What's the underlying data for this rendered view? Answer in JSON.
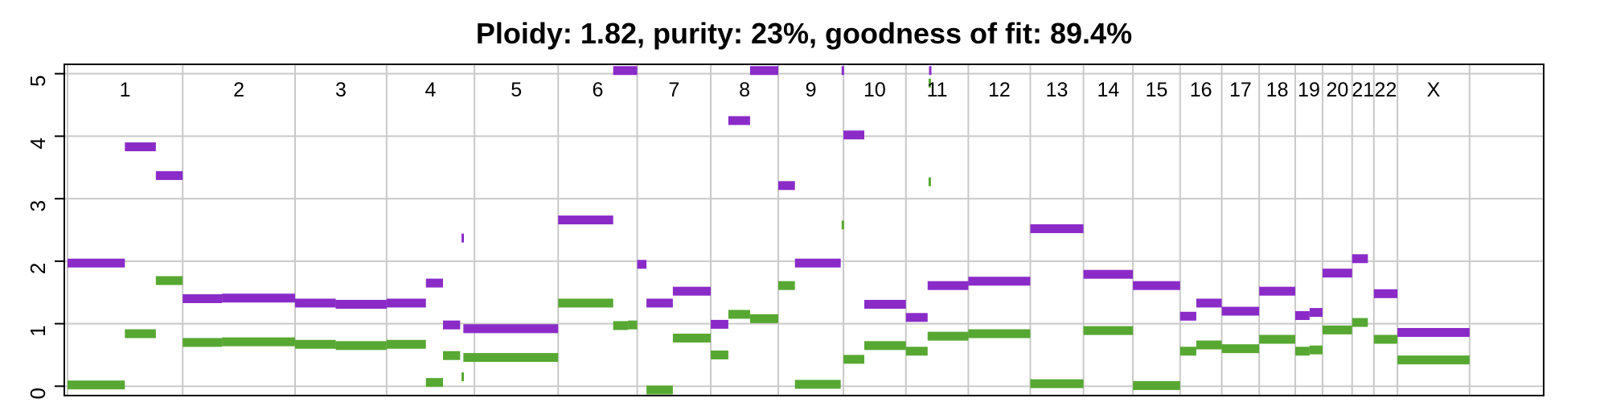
{
  "chart_data": {
    "type": "scatter",
    "title": "Ploidy: 1.82, purity: 23%, goodness of fit: 89.4%",
    "xlabel": "",
    "ylabel": "",
    "ylim": [
      -0.15,
      5.15
    ],
    "xlim": [
      0,
      3187
    ],
    "grid": true,
    "y_ticks": [
      0,
      1,
      2,
      3,
      4,
      5
    ],
    "chromosome_boundaries": [
      0,
      249,
      492,
      690,
      880,
      1061,
      1232,
      1391,
      1537,
      1678,
      1813,
      1948,
      2082,
      2197,
      2304,
      2406,
      2496,
      2577,
      2655,
      2714,
      2778,
      2825,
      2876,
      3032
    ],
    "chromosome_labels": [
      "1",
      "2",
      "3",
      "4",
      "5",
      "6",
      "7",
      "8",
      "9",
      "10",
      "11",
      "12",
      "13",
      "14",
      "15",
      "16",
      "17",
      "18",
      "19",
      "20",
      "21",
      "22",
      "X"
    ],
    "colors": {
      "major": "#8A2BC8",
      "minor": "#57A832",
      "overflow": "#4B1A72",
      "grid": "#c9c9c9",
      "axis": "#000000"
    },
    "series": [
      {
        "role": "major",
        "segments": [
          [
            0,
            124,
            1.97
          ],
          [
            124,
            191,
            3.83
          ],
          [
            191,
            249,
            3.37
          ],
          [
            249,
            334,
            1.4
          ],
          [
            334,
            492,
            1.41
          ],
          [
            492,
            580,
            1.33
          ],
          [
            580,
            690,
            1.31
          ],
          [
            690,
            775,
            1.33
          ],
          [
            775,
            812,
            1.65
          ],
          [
            812,
            849,
            0.98
          ],
          [
            852,
            856,
            2.37
          ],
          [
            856,
            1061,
            0.92
          ],
          [
            1061,
            1180,
            2.66
          ],
          [
            1180,
            1232,
            5.05
          ],
          [
            1232,
            1252,
            1.95
          ],
          [
            1252,
            1309,
            1.33
          ],
          [
            1309,
            1391,
            1.52
          ],
          [
            1391,
            1429,
            0.99
          ],
          [
            1429,
            1476,
            4.25
          ],
          [
            1476,
            1537,
            5.05
          ],
          [
            1537,
            1573,
            3.21
          ],
          [
            1573,
            1672,
            1.97
          ],
          [
            1674,
            1678,
            5.05
          ],
          [
            1678,
            1723,
            4.02
          ],
          [
            1723,
            1813,
            1.31
          ],
          [
            1813,
            1860,
            1.1
          ],
          [
            1863,
            1867,
            5.05
          ],
          [
            1860,
            1948,
            1.61
          ],
          [
            1948,
            2082,
            1.68
          ],
          [
            2082,
            2197,
            2.52
          ],
          [
            2197,
            2304,
            1.79
          ],
          [
            2304,
            2406,
            1.61
          ],
          [
            2406,
            2441,
            1.12
          ],
          [
            2441,
            2496,
            1.33
          ],
          [
            2496,
            2577,
            1.2
          ],
          [
            2577,
            2655,
            1.52
          ],
          [
            2655,
            2686,
            1.13
          ],
          [
            2686,
            2714,
            1.18
          ],
          [
            2714,
            2778,
            1.81
          ],
          [
            2778,
            2812,
            2.04
          ],
          [
            2825,
            2876,
            1.48
          ],
          [
            2876,
            3032,
            0.86
          ]
        ]
      },
      {
        "role": "minor",
        "segments": [
          [
            0,
            124,
            0.02
          ],
          [
            124,
            191,
            0.84
          ],
          [
            191,
            249,
            1.69
          ],
          [
            249,
            334,
            0.7
          ],
          [
            334,
            492,
            0.71
          ],
          [
            492,
            580,
            0.67
          ],
          [
            580,
            690,
            0.65
          ],
          [
            690,
            775,
            0.67
          ],
          [
            775,
            812,
            0.06
          ],
          [
            812,
            849,
            0.49
          ],
          [
            852,
            856,
            0.15
          ],
          [
            856,
            1061,
            0.46
          ],
          [
            1061,
            1180,
            1.33
          ],
          [
            1180,
            1212,
            0.97
          ],
          [
            1212,
            1232,
            0.98
          ],
          [
            1252,
            1309,
            -0.06
          ],
          [
            1309,
            1391,
            0.77
          ],
          [
            1391,
            1429,
            0.5
          ],
          [
            1429,
            1476,
            1.15
          ],
          [
            1476,
            1537,
            1.08
          ],
          [
            1537,
            1573,
            1.61
          ],
          [
            1573,
            1672,
            0.03
          ],
          [
            1674,
            1678,
            2.58
          ],
          [
            1678,
            1723,
            0.43
          ],
          [
            1723,
            1813,
            0.65
          ],
          [
            1813,
            1860,
            0.56
          ],
          [
            1862,
            1865,
            3.27
          ],
          [
            1862,
            1865,
            4.85
          ],
          [
            1860,
            1948,
            0.8
          ],
          [
            1948,
            2082,
            0.84
          ],
          [
            2082,
            2197,
            0.04
          ],
          [
            2197,
            2304,
            0.89
          ],
          [
            2304,
            2406,
            0.01
          ],
          [
            2406,
            2441,
            0.56
          ],
          [
            2441,
            2496,
            0.66
          ],
          [
            2496,
            2577,
            0.6
          ],
          [
            2577,
            2655,
            0.75
          ],
          [
            2655,
            2686,
            0.56
          ],
          [
            2686,
            2714,
            0.58
          ],
          [
            2714,
            2778,
            0.9
          ],
          [
            2778,
            2812,
            1.02
          ],
          [
            2825,
            2876,
            0.75
          ],
          [
            2876,
            3032,
            0.42
          ]
        ]
      }
    ]
  }
}
